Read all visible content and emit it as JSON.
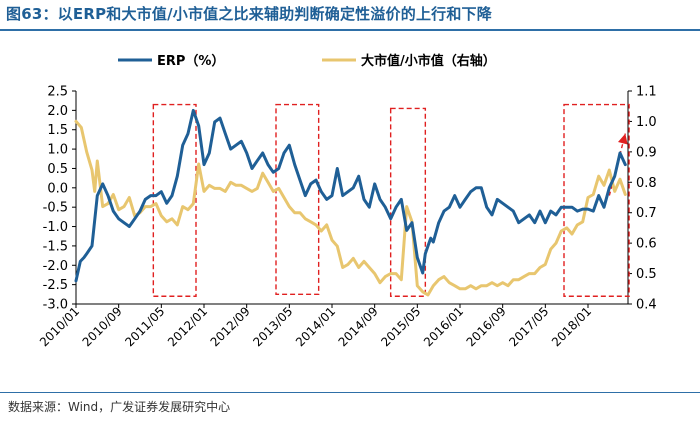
{
  "figure": {
    "title": "图63：以ERP和大市值/小市值之比来辅助判断确定性溢价的上行和下降",
    "source": "数据来源：Wind，广发证券发展研究中心"
  },
  "colors": {
    "erp": "#1f5f96",
    "ratio": "#e8c66f",
    "box": "#e02020",
    "axis": "#000000"
  },
  "chart_data": {
    "type": "line",
    "legend": [
      {
        "name": "ERP（%）"
      },
      {
        "name": "大市值/小市值（右轴）"
      }
    ],
    "x_tick_labels": [
      "2010/01",
      "2010/09",
      "2011/05",
      "2012/01",
      "2012/09",
      "2013/05",
      "2014/01",
      "2014/09",
      "2015/05",
      "2016/01",
      "2016/09",
      "2017/05",
      "2018/01"
    ],
    "y_left": {
      "min": -3.0,
      "max": 2.5,
      "step": 0.5,
      "tick_labels": [
        "2.5",
        "2.0",
        "1.5",
        "1.0",
        "0.5",
        "0.0",
        "-0.5",
        "-1.0",
        "-1.5",
        "-2.0",
        "-2.5",
        "-3.0"
      ]
    },
    "y_right": {
      "min": 0.4,
      "max": 1.1,
      "step": 0.1,
      "tick_labels": [
        "1.1",
        "1.0",
        "0.9",
        "0.8",
        "0.7",
        "0.6",
        "0.5",
        "0.4"
      ]
    },
    "series": [
      {
        "name": "ERP（%）",
        "axis": "left",
        "t": [
          0,
          0.8,
          1.5,
          2,
          3,
          4,
          5,
          6,
          7,
          8,
          9,
          10,
          11,
          12,
          13,
          14,
          15,
          16,
          17,
          18,
          19,
          20,
          21,
          22,
          23,
          24,
          25,
          26,
          27,
          28,
          29,
          30,
          31,
          32,
          33,
          34,
          35,
          36,
          37,
          38,
          39,
          40,
          41,
          42,
          43,
          44,
          45,
          46,
          47,
          48,
          49,
          50,
          51,
          52,
          53,
          54,
          55,
          56,
          57,
          58,
          59,
          60,
          61,
          62,
          63,
          64,
          65,
          65.5,
          66,
          66.5,
          67,
          68,
          69,
          70,
          71,
          72,
          73,
          74,
          75,
          76,
          77,
          78,
          79,
          80,
          81,
          82,
          83,
          84,
          85,
          86,
          87,
          88,
          89,
          90,
          91,
          92,
          93,
          94,
          95,
          96,
          97,
          98,
          99,
          100,
          101,
          102,
          103
        ],
        "values": [
          -2.4,
          -1.9,
          -1.8,
          -1.7,
          -1.5,
          -0.2,
          0.1,
          -0.2,
          -0.6,
          -0.8,
          -0.9,
          -1.0,
          -0.8,
          -0.6,
          -0.3,
          -0.2,
          -0.2,
          -0.1,
          -0.4,
          -0.2,
          0.3,
          1.1,
          1.4,
          2.0,
          1.6,
          0.6,
          0.9,
          1.7,
          1.8,
          1.4,
          1.0,
          1.1,
          1.2,
          0.9,
          0.5,
          0.7,
          0.9,
          0.6,
          0.4,
          0.5,
          0.9,
          1.1,
          0.6,
          0.2,
          -0.2,
          0.1,
          0.2,
          -0.1,
          -0.3,
          -0.2,
          0.5,
          -0.2,
          -0.1,
          0.0,
          0.3,
          -0.3,
          -0.5,
          0.1,
          -0.3,
          -0.5,
          -0.8,
          -0.5,
          -0.3,
          -1.1,
          -0.9,
          -1.8,
          -2.2,
          -1.7,
          -1.5,
          -1.3,
          -1.4,
          -0.9,
          -0.6,
          -0.5,
          -0.2,
          -0.5,
          -0.3,
          -0.1,
          0.0,
          0.0,
          -0.5,
          -0.7,
          -0.3,
          -0.4,
          -0.5,
          -0.6,
          -0.9,
          -0.8,
          -0.7,
          -0.9,
          -0.6,
          -0.9,
          -0.6,
          -0.7,
          -0.5,
          -0.5,
          -0.5,
          -0.6,
          -0.55,
          -0.55,
          -0.6,
          -0.2,
          -0.5,
          0.0,
          0.3,
          0.9,
          0.6
        ]
      },
      {
        "name": "大市值/小市值（右轴）",
        "axis": "right",
        "t": [
          0,
          1,
          2,
          3,
          3.5,
          4,
          5,
          6,
          7,
          8,
          9,
          10,
          11,
          12,
          13,
          14,
          15,
          16,
          17,
          18,
          19,
          20,
          21,
          22,
          23,
          24,
          25,
          26,
          27,
          28,
          29,
          30,
          31,
          32,
          33,
          34,
          35,
          36,
          37,
          38,
          39,
          40,
          41,
          42,
          43,
          44,
          45,
          46,
          47,
          48,
          49,
          50,
          51,
          52,
          53,
          54,
          55,
          56,
          57,
          58,
          59,
          60,
          61,
          62,
          63,
          64,
          65,
          66,
          67,
          68,
          69,
          70,
          71,
          72,
          73,
          74,
          75,
          76,
          77,
          78,
          79,
          80,
          81,
          82,
          83,
          84,
          85,
          86,
          87,
          88,
          89,
          90,
          91,
          92,
          93,
          94,
          95,
          96,
          97,
          98,
          99,
          100,
          101,
          102,
          103
        ],
        "values": [
          1.0,
          0.98,
          0.9,
          0.84,
          0.77,
          0.87,
          0.72,
          0.73,
          0.76,
          0.71,
          0.72,
          0.75,
          0.69,
          0.7,
          0.72,
          0.72,
          0.73,
          0.69,
          0.67,
          0.68,
          0.66,
          0.72,
          0.71,
          0.73,
          0.86,
          0.77,
          0.79,
          0.78,
          0.78,
          0.77,
          0.8,
          0.79,
          0.79,
          0.78,
          0.77,
          0.78,
          0.83,
          0.8,
          0.77,
          0.78,
          0.75,
          0.72,
          0.7,
          0.7,
          0.68,
          0.67,
          0.66,
          0.64,
          0.66,
          0.61,
          0.59,
          0.52,
          0.53,
          0.55,
          0.52,
          0.54,
          0.52,
          0.5,
          0.47,
          0.49,
          0.5,
          0.5,
          0.48,
          0.72,
          0.67,
          0.46,
          0.44,
          0.43,
          0.46,
          0.48,
          0.49,
          0.47,
          0.46,
          0.45,
          0.45,
          0.46,
          0.45,
          0.46,
          0.46,
          0.47,
          0.46,
          0.47,
          0.46,
          0.48,
          0.48,
          0.49,
          0.5,
          0.5,
          0.52,
          0.53,
          0.58,
          0.6,
          0.64,
          0.65,
          0.63,
          0.66,
          0.67,
          0.75,
          0.76,
          0.82,
          0.79,
          0.84,
          0.77,
          0.81,
          0.76
        ]
      }
    ],
    "annotations": [
      {
        "type": "dashed-box",
        "t_start": 14.5,
        "t_end": 22.5,
        "y_top": 2.15,
        "y_bottom": -2.8
      },
      {
        "type": "dashed-box",
        "t_start": 37.5,
        "t_end": 45.5,
        "y_top": 2.15,
        "y_bottom": -2.75
      },
      {
        "type": "dashed-box",
        "t_start": 59,
        "t_end": 65.5,
        "y_top": 2.05,
        "y_bottom": -2.8
      },
      {
        "type": "dashed-box",
        "t_start": 91.5,
        "t_end": 103.7,
        "y_top": 2.15,
        "y_bottom": -2.8
      },
      {
        "type": "dashed-arrow",
        "t_from": 100,
        "y_from": -0.2,
        "t_to": 103,
        "y_to": 1.4
      }
    ],
    "t_range": [
      0,
      103.5
    ],
    "grid": false
  }
}
